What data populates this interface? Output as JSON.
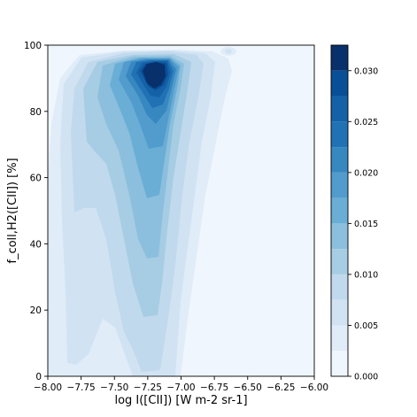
{
  "chart_data": {
    "type": "heatmap",
    "subtype": "filled-contour",
    "title": "",
    "xlabel": "log I([CII]) [W m-2 sr-1]",
    "ylabel": "f_coll,H2([CII]) [%]",
    "xlim": [
      -8.0,
      -6.0
    ],
    "ylim": [
      0,
      100
    ],
    "x_ticks": [
      "−8.00",
      "−7.75",
      "−7.50",
      "−7.25",
      "−7.00",
      "−6.75",
      "−6.50",
      "−6.25",
      "−6.00"
    ],
    "y_ticks": [
      "0",
      "20",
      "40",
      "60",
      "80",
      "100"
    ],
    "grid": false,
    "colormap": "Blues",
    "colorbar": {
      "range": [
        0.0,
        0.0325
      ],
      "levels": [
        0.0,
        0.0025,
        0.005,
        0.0075,
        0.01,
        0.0125,
        0.015,
        0.0175,
        0.02,
        0.0225,
        0.025,
        0.0275,
        0.03,
        0.0325
      ],
      "tick_values": [
        0.0,
        0.005,
        0.01,
        0.015,
        0.02,
        0.025,
        0.03
      ],
      "tick_labels": [
        "0.000",
        "0.005",
        "0.010",
        "0.015",
        "0.020",
        "0.025",
        "0.030"
      ],
      "colors": [
        "#f0f6fd",
        "#e0ecf8",
        "#d1e3f3",
        "#c1d9ed",
        "#a6cde3",
        "#8cbfdd",
        "#6aaed6",
        "#519ccc",
        "#3787c0",
        "#2171b5",
        "#1461a8",
        "#084f97",
        "#08306b"
      ]
    },
    "density_peak": {
      "x": -7.22,
      "y": 91,
      "value": 0.032
    },
    "density_ridge": [
      {
        "y": 2,
        "x_center": -7.27,
        "x_left": -7.82,
        "x_right": -7.05
      },
      {
        "y": 20,
        "x_center": -7.27,
        "x_left": -7.85,
        "x_right": -7.02
      },
      {
        "y": 40,
        "x_center": -7.28,
        "x_left": -7.88,
        "x_right": -7.0
      },
      {
        "y": 60,
        "x_center": -7.3,
        "x_left": -7.9,
        "x_right": -6.97
      },
      {
        "y": 80,
        "x_center": -7.28,
        "x_left": -7.9,
        "x_right": -6.9
      },
      {
        "y": 92,
        "x_center": -7.22,
        "x_left": -7.85,
        "x_right": -6.8
      }
    ],
    "secondary_peak": {
      "x": -6.65,
      "y": 98,
      "value": 0.002
    }
  }
}
